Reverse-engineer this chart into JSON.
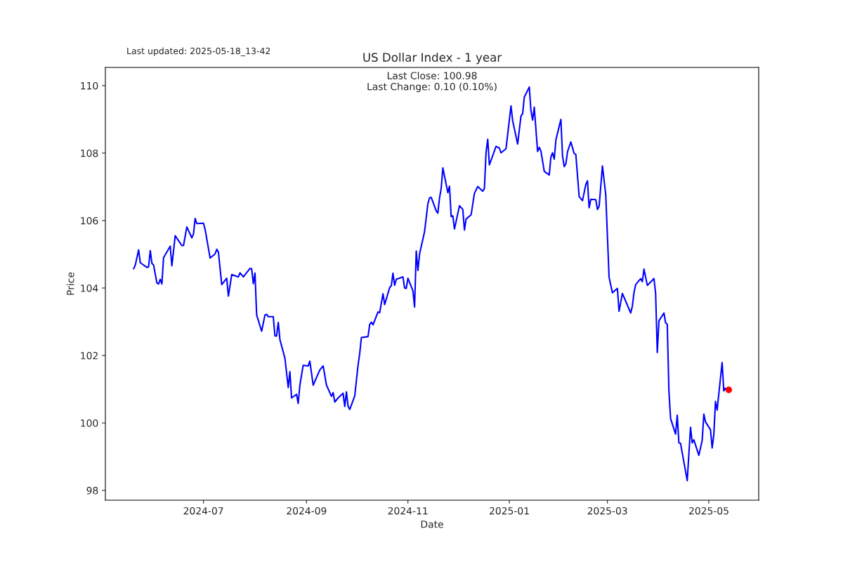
{
  "chart_data": {
    "type": "line",
    "title": "US Dollar Index - 1 year",
    "xlabel": "Date",
    "ylabel": "Price",
    "annotations": [
      "Last updated: 2025-05-18_13-42",
      "Last Close: 100.98\nLast Change: 0.10 (0.10%)"
    ],
    "xlim": [
      "2024-05-03",
      "2025-05-31"
    ],
    "ylim": [
      97.71,
      110.54
    ],
    "xticks": [
      {
        "value": "2024-07-01",
        "label": "2024-07"
      },
      {
        "value": "2024-09-01",
        "label": "2024-09"
      },
      {
        "value": "2024-11-01",
        "label": "2024-11"
      },
      {
        "value": "2025-01-01",
        "label": "2025-01"
      },
      {
        "value": "2025-03-01",
        "label": "2025-03"
      },
      {
        "value": "2025-05-01",
        "label": "2025-05"
      }
    ],
    "yticks": [
      98,
      100,
      102,
      104,
      106,
      108,
      110
    ],
    "grid": false,
    "legend": false,
    "series": [
      {
        "color": "#0000ff",
        "line_style": "solid",
        "marker": "none",
        "x": [
          "2024-05-20",
          "2024-05-21",
          "2024-05-23",
          "2024-05-24",
          "2024-05-28",
          "2024-05-29",
          "2024-05-30",
          "2024-05-31",
          "2024-06-01",
          "2024-06-03",
          "2024-06-04",
          "2024-06-05",
          "2024-06-06",
          "2024-06-07",
          "2024-06-11",
          "2024-06-12",
          "2024-06-14",
          "2024-06-18",
          "2024-06-19",
          "2024-06-21",
          "2024-06-24",
          "2024-06-25",
          "2024-06-26",
          "2024-06-27",
          "2024-07-01",
          "2024-07-02",
          "2024-07-05",
          "2024-07-08",
          "2024-07-09",
          "2024-07-10",
          "2024-07-12",
          "2024-07-15",
          "2024-07-16",
          "2024-07-18",
          "2024-07-22",
          "2024-07-23",
          "2024-07-25",
          "2024-07-29",
          "2024-07-30",
          "2024-07-31",
          "2024-08-01",
          "2024-08-02",
          "2024-08-05",
          "2024-08-07",
          "2024-08-08",
          "2024-08-09",
          "2024-08-12",
          "2024-08-13",
          "2024-08-14",
          "2024-08-15",
          "2024-08-16",
          "2024-08-19",
          "2024-08-21",
          "2024-08-22",
          "2024-08-23",
          "2024-08-26",
          "2024-08-27",
          "2024-08-28",
          "2024-08-30",
          "2024-09-02",
          "2024-09-03",
          "2024-09-05",
          "2024-09-09",
          "2024-09-11",
          "2024-09-13",
          "2024-09-16",
          "2024-09-17",
          "2024-09-18",
          "2024-09-20",
          "2024-09-23",
          "2024-09-24",
          "2024-09-25",
          "2024-09-26",
          "2024-09-27",
          "2024-09-30",
          "2024-10-02",
          "2024-10-03",
          "2024-10-04",
          "2024-10-08",
          "2024-10-09",
          "2024-10-10",
          "2024-10-11",
          "2024-10-14",
          "2024-10-15",
          "2024-10-17",
          "2024-10-18",
          "2024-10-21",
          "2024-10-22",
          "2024-10-23",
          "2024-10-24",
          "2024-10-25",
          "2024-10-29",
          "2024-10-30",
          "2024-10-31",
          "2024-11-01",
          "2024-11-04",
          "2024-11-05",
          "2024-11-06",
          "2024-11-07",
          "2024-11-08",
          "2024-11-11",
          "2024-11-13",
          "2024-11-14",
          "2024-11-15",
          "2024-11-18",
          "2024-11-19",
          "2024-11-20",
          "2024-11-21",
          "2024-11-22",
          "2024-11-25",
          "2024-11-26",
          "2024-11-27",
          "2024-11-28",
          "2024-11-29",
          "2024-12-02",
          "2024-12-04",
          "2024-12-05",
          "2024-12-06",
          "2024-12-09",
          "2024-12-11",
          "2024-12-13",
          "2024-12-16",
          "2024-12-17",
          "2024-12-18",
          "2024-12-19",
          "2024-12-20",
          "2024-12-24",
          "2024-12-26",
          "2024-12-27",
          "2024-12-30",
          "2025-01-02",
          "2025-01-03",
          "2025-01-06",
          "2025-01-08",
          "2025-01-09",
          "2025-01-10",
          "2025-01-13",
          "2025-01-14",
          "2025-01-15",
          "2025-01-16",
          "2025-01-18",
          "2025-01-19",
          "2025-01-20",
          "2025-01-22",
          "2025-01-25",
          "2025-01-26",
          "2025-01-27",
          "2025-01-28",
          "2025-01-29",
          "2025-02-01",
          "2025-02-02",
          "2025-02-03",
          "2025-02-04",
          "2025-02-05",
          "2025-02-07",
          "2025-02-09",
          "2025-02-10",
          "2025-02-12",
          "2025-02-14",
          "2025-02-16",
          "2025-02-17",
          "2025-02-18",
          "2025-02-19",
          "2025-02-22",
          "2025-02-23",
          "2025-02-24",
          "2025-02-26",
          "2025-02-28",
          "2025-03-02",
          "2025-03-04",
          "2025-03-07",
          "2025-03-08",
          "2025-03-10",
          "2025-03-15",
          "2025-03-16",
          "2025-03-17",
          "2025-03-18",
          "2025-03-21",
          "2025-03-22",
          "2025-03-23",
          "2025-03-25",
          "2025-03-29",
          "2025-03-30",
          "2025-03-31",
          "2025-04-01",
          "2025-04-04",
          "2025-04-05",
          "2025-04-06",
          "2025-04-07",
          "2025-04-08",
          "2025-04-11",
          "2025-04-12",
          "2025-04-13",
          "2025-04-14",
          "2025-04-18",
          "2025-04-20",
          "2025-04-21",
          "2025-04-22",
          "2025-04-25",
          "2025-04-27",
          "2025-04-28",
          "2025-04-29",
          "2025-05-02",
          "2025-05-03",
          "2025-05-04",
          "2025-05-05",
          "2025-05-06",
          "2025-05-07",
          "2025-05-09",
          "2025-05-10",
          "2025-05-11",
          "2025-05-12",
          "2025-05-13"
        ],
        "values": [
          104.57,
          104.68,
          105.13,
          104.75,
          104.61,
          104.63,
          105.11,
          104.73,
          104.68,
          104.15,
          104.12,
          104.26,
          104.12,
          104.9,
          105.24,
          104.66,
          105.55,
          105.26,
          105.26,
          105.81,
          105.49,
          105.6,
          106.06,
          105.91,
          105.92,
          105.74,
          104.89,
          105.01,
          105.15,
          105.06,
          104.1,
          104.29,
          103.76,
          104.4,
          104.33,
          104.45,
          104.33,
          104.58,
          104.57,
          104.13,
          104.44,
          103.2,
          102.72,
          103.2,
          103.22,
          103.15,
          103.15,
          102.58,
          102.58,
          102.98,
          102.47,
          101.92,
          101.05,
          101.52,
          100.74,
          100.85,
          100.58,
          101.12,
          101.71,
          101.69,
          101.83,
          101.12,
          101.57,
          101.69,
          101.12,
          100.79,
          100.9,
          100.62,
          100.74,
          100.88,
          100.49,
          100.92,
          100.49,
          100.4,
          100.8,
          101.71,
          102.06,
          102.53,
          102.56,
          102.92,
          102.99,
          102.91,
          103.29,
          103.27,
          103.83,
          103.51,
          104.01,
          104.07,
          104.44,
          104.08,
          104.26,
          104.33,
          104.0,
          103.99,
          104.29,
          103.92,
          103.44,
          105.1,
          104.52,
          105.01,
          105.67,
          106.5,
          106.67,
          106.69,
          106.29,
          106.22,
          106.67,
          106.95,
          107.56,
          106.83,
          107.02,
          106.12,
          106.14,
          105.75,
          106.44,
          106.33,
          105.72,
          106.05,
          106.17,
          106.81,
          107.01,
          106.87,
          106.95,
          108.03,
          108.41,
          107.65,
          108.2,
          108.15,
          108.01,
          108.13,
          109.4,
          108.96,
          108.27,
          109.1,
          109.17,
          109.66,
          109.96,
          109.26,
          108.98,
          109.36,
          108.05,
          108.17,
          108.06,
          107.46,
          107.35,
          107.88,
          108.01,
          107.82,
          108.39,
          109.0,
          107.92,
          107.6,
          107.68,
          108.04,
          108.33,
          107.99,
          107.96,
          106.71,
          106.59,
          107.07,
          107.18,
          106.38,
          106.63,
          106.62,
          106.33,
          106.42,
          107.62,
          106.76,
          104.32,
          103.86,
          103.99,
          103.31,
          103.84,
          103.26,
          103.46,
          103.87,
          104.1,
          104.28,
          104.19,
          104.56,
          104.08,
          104.28,
          103.84,
          102.09,
          103.03,
          103.26,
          102.97,
          102.92,
          100.94,
          100.13,
          99.67,
          100.23,
          99.41,
          99.39,
          98.29,
          99.87,
          99.41,
          99.5,
          99.04,
          99.48,
          100.26,
          100.03,
          99.8,
          99.26,
          99.65,
          100.64,
          100.38,
          100.86,
          101.79,
          100.95,
          101.03,
          100.94,
          100.98
        ]
      },
      {
        "type": "scatter",
        "color": "#ff0000",
        "marker": "circle",
        "x": [
          "2025-05-13"
        ],
        "values": [
          100.98
        ]
      }
    ]
  }
}
